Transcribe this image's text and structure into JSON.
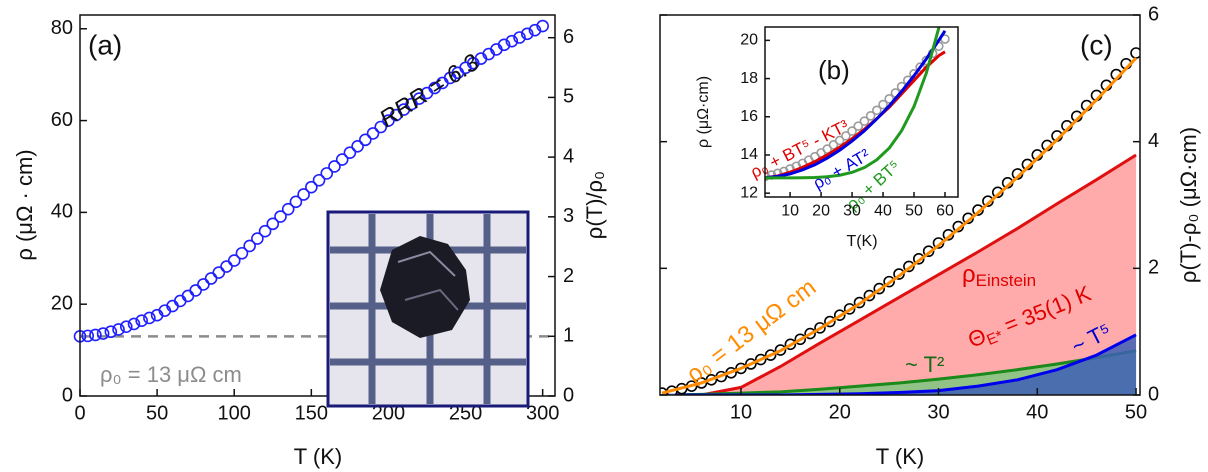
{
  "chart_data": [
    {
      "type": "scatter",
      "panel_label": "(a)",
      "xlabel": "T (K)",
      "ylabel": "ρ (μΩ · cm)",
      "y2label": "ρ(T)/ρ₀",
      "xlim": [
        0,
        308
      ],
      "ylim": [
        0,
        83
      ],
      "y2lim": [
        0,
        6.38
      ],
      "xticks": [
        0,
        50,
        100,
        150,
        200,
        250,
        300
      ],
      "yticks": [
        0,
        20,
        40,
        60,
        80
      ],
      "y2ticks": [
        0,
        1,
        2,
        3,
        4,
        5,
        6
      ],
      "reference_line": {
        "value": 13,
        "color": "#8c8c8c"
      },
      "annotations": {
        "rrr": "RRR = 6.3",
        "rho0": "ρ₀ = 13 μΩ cm"
      },
      "series": [
        {
          "kind": "scatter",
          "color": "#1f1fff",
          "x": [
            0,
            5,
            10,
            15,
            20,
            25,
            30,
            35,
            40,
            45,
            50,
            55,
            60,
            65,
            70,
            75,
            80,
            85,
            90,
            95,
            100,
            105,
            110,
            115,
            120,
            125,
            130,
            135,
            140,
            145,
            150,
            155,
            160,
            165,
            170,
            175,
            180,
            185,
            190,
            195,
            200,
            205,
            210,
            215,
            220,
            225,
            230,
            235,
            240,
            245,
            250,
            255,
            260,
            265,
            270,
            275,
            280,
            285,
            290,
            295,
            300
          ],
          "values": [
            13,
            13.1,
            13.3,
            13.6,
            14.0,
            14.5,
            15.1,
            15.7,
            16.4,
            17.0,
            17.6,
            18.6,
            19.6,
            20.7,
            21.8,
            23.0,
            24.3,
            25.6,
            26.9,
            28.2,
            29.5,
            31.1,
            32.7,
            34.3,
            35.9,
            37.5,
            39.1,
            40.7,
            42.3,
            43.9,
            45.5,
            47.0,
            48.5,
            50.0,
            51.5,
            53.0,
            54.4,
            55.8,
            57.2,
            58.6,
            60.0,
            61.2,
            62.4,
            63.6,
            64.8,
            66.0,
            67.1,
            68.2,
            69.3,
            70.4,
            71.5,
            72.5,
            73.5,
            74.5,
            75.5,
            76.5,
            77.3,
            78.1,
            78.9,
            79.7,
            80.6
          ]
        }
      ]
    },
    {
      "type": "line",
      "panel_label": "(c)",
      "xlabel": "T (K)",
      "ylabel": "ρ(T)-ρ₀ (μΩ·cm)",
      "yaxis_side": "right",
      "xlim": [
        1.8,
        50.4
      ],
      "ylim": [
        0,
        6
      ],
      "xticks": [
        10,
        20,
        30,
        40,
        50
      ],
      "yticks": [
        0,
        2,
        4,
        6
      ],
      "annotations": {
        "fit": "ρ₀ = 13 μΩ cm",
        "einstein": [
          "ρ",
          "Einstein"
        ],
        "theta": [
          "Θ",
          "E*",
          " = 35(1) K"
        ],
        "t2": "~ T²",
        "t5": "~ T⁵"
      },
      "series": [
        {
          "kind": "area",
          "color": "#e01010",
          "fill": "#ff9c9c",
          "x": [
            2,
            6,
            10,
            14,
            18,
            22,
            26,
            30,
            34,
            38,
            42,
            46,
            50
          ],
          "values": [
            0,
            0,
            0.12,
            0.45,
            0.82,
            1.18,
            1.54,
            1.9,
            2.26,
            2.63,
            3.02,
            3.4,
            3.79
          ]
        },
        {
          "kind": "area",
          "color": "#1a8a1a",
          "fill": "#7fc77f",
          "x": [
            2,
            6,
            10,
            14,
            18,
            22,
            26,
            30,
            34,
            38,
            42,
            46,
            50
          ],
          "values": [
            0,
            0.01,
            0.03,
            0.05,
            0.09,
            0.14,
            0.19,
            0.25,
            0.32,
            0.4,
            0.49,
            0.59,
            0.7
          ]
        },
        {
          "kind": "area",
          "color": "#0000ee",
          "fill": "#3d5fb5",
          "x": [
            2,
            6,
            10,
            14,
            18,
            22,
            26,
            30,
            34,
            38,
            42,
            46,
            50
          ],
          "values": [
            0,
            0,
            0,
            0,
            0.01,
            0.02,
            0.04,
            0.07,
            0.14,
            0.24,
            0.4,
            0.63,
            0.95
          ]
        },
        {
          "kind": "scatter",
          "color": "#000000",
          "x": [
            2,
            3,
            4,
            5,
            6,
            7,
            8,
            9,
            10,
            11,
            12,
            13,
            14,
            15,
            16,
            17,
            18,
            19,
            20,
            21,
            22,
            23,
            24,
            25,
            26,
            27,
            28,
            29,
            30,
            31,
            32,
            33,
            34,
            35,
            36,
            37,
            38,
            39,
            40,
            41,
            42,
            43,
            44,
            45,
            46,
            47,
            48,
            49,
            50
          ],
          "values": [
            0.03,
            0.06,
            0.1,
            0.14,
            0.19,
            0.24,
            0.29,
            0.35,
            0.42,
            0.49,
            0.56,
            0.63,
            0.71,
            0.8,
            0.88,
            0.97,
            1.06,
            1.16,
            1.26,
            1.36,
            1.46,
            1.57,
            1.68,
            1.79,
            1.91,
            2.03,
            2.15,
            2.27,
            2.4,
            2.53,
            2.66,
            2.79,
            2.92,
            3.06,
            3.2,
            3.35,
            3.49,
            3.64,
            3.79,
            3.94,
            4.09,
            4.25,
            4.4,
            4.57,
            4.73,
            4.89,
            5.06,
            5.23,
            5.4
          ]
        },
        {
          "kind": "line",
          "color": "#ff8c00",
          "x": [
            2,
            6,
            10,
            14,
            18,
            22,
            26,
            30,
            34,
            38,
            42,
            46,
            50
          ],
          "values": [
            0.03,
            0.19,
            0.42,
            0.7,
            1.05,
            1.44,
            1.88,
            2.36,
            2.88,
            3.44,
            4.03,
            4.66,
            5.32
          ]
        }
      ]
    },
    {
      "type": "line",
      "panel_label": "(b)",
      "xlabel": "T(K)",
      "ylabel": "ρ (μΩ·cm)",
      "xlim": [
        1.9,
        64.2
      ],
      "ylim": [
        11.8,
        20.7
      ],
      "xticks": [
        10,
        20,
        30,
        40,
        50,
        60
      ],
      "yticks": [
        12,
        14,
        16,
        18,
        20
      ],
      "series": [
        {
          "kind": "scatter",
          "color": "#9a9a9a",
          "x": [
            2,
            4,
            6,
            8,
            10,
            12,
            14,
            16,
            18,
            20,
            22,
            24,
            26,
            28,
            30,
            32,
            34,
            36,
            38,
            40,
            42,
            44,
            46,
            48,
            50,
            52,
            54,
            56,
            58,
            60
          ],
          "values": [
            12.88,
            12.95,
            13.04,
            13.14,
            13.27,
            13.41,
            13.56,
            13.73,
            13.91,
            14.11,
            14.31,
            14.53,
            14.76,
            15.0,
            15.25,
            15.51,
            15.77,
            16.05,
            16.34,
            16.64,
            16.94,
            17.25,
            17.58,
            17.91,
            18.25,
            18.6,
            18.95,
            19.32,
            19.69,
            20.07
          ]
        },
        {
          "kind": "line",
          "name": "ρ₀ + BT⁵ - KT³",
          "color": "#e00000",
          "x": [
            2,
            6,
            10,
            14,
            18,
            22,
            26,
            30,
            34,
            38,
            42,
            46,
            50,
            54,
            58,
            60
          ],
          "values": [
            12.8,
            12.9,
            13.1,
            13.35,
            13.65,
            14.0,
            14.4,
            14.85,
            15.35,
            15.9,
            16.5,
            17.2,
            17.9,
            18.6,
            19.2,
            19.4
          ]
        },
        {
          "kind": "line",
          "name": "ρ₀ + AT²",
          "color": "#0000e0",
          "x": [
            2,
            6,
            10,
            14,
            18,
            22,
            26,
            30,
            34,
            38,
            42,
            46,
            50,
            54,
            58,
            60
          ],
          "values": [
            12.81,
            12.88,
            13.01,
            13.22,
            13.49,
            13.84,
            14.25,
            14.73,
            15.27,
            15.89,
            16.57,
            17.33,
            18.15,
            19.04,
            20.0,
            20.5
          ]
        },
        {
          "kind": "line",
          "name": "ρ₀ + BT⁵",
          "color": "#1f9a1f",
          "x": [
            2,
            6,
            10,
            14,
            18,
            22,
            26,
            30,
            34,
            38,
            42,
            46,
            50,
            54,
            58,
            60
          ],
          "values": [
            12.8,
            12.8,
            12.8,
            12.81,
            12.82,
            12.86,
            12.94,
            13.09,
            13.34,
            13.75,
            14.36,
            15.27,
            16.54,
            18.3,
            20.65,
            22.11
          ]
        }
      ]
    }
  ]
}
